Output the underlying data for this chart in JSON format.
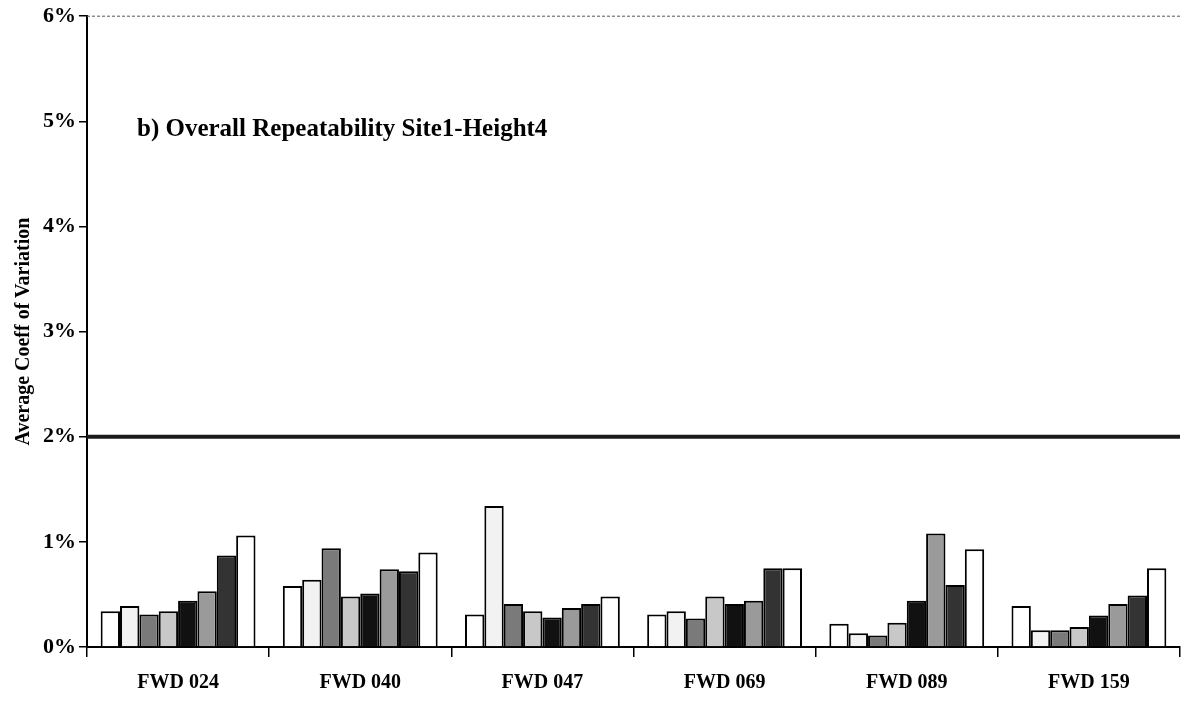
{
  "chart_data": {
    "type": "bar",
    "title": "b) Overall Repeatability Site1-Height4",
    "ylabel": "Average Coeff of Variation",
    "categories": [
      "FWD 024",
      "FWD 040",
      "FWD 047",
      "FWD 069",
      "FWD 089",
      "FWD 159"
    ],
    "series": [
      {
        "color": "#ffffff",
        "values": [
          0.34,
          0.58,
          0.31,
          0.31,
          0.22,
          0.39
        ]
      },
      {
        "color": "#f2f2f2",
        "values": [
          0.39,
          0.64,
          1.34,
          0.34,
          0.13,
          0.16
        ]
      },
      {
        "color": "#7a7a7a",
        "values": [
          0.31,
          0.94,
          0.41,
          0.27,
          0.11,
          0.16
        ]
      },
      {
        "color": "#c8c8c8",
        "values": [
          0.34,
          0.48,
          0.34,
          0.48,
          0.23,
          0.19
        ]
      },
      {
        "color": "#111111",
        "values": [
          0.44,
          0.51,
          0.28,
          0.41,
          0.44,
          0.3
        ]
      },
      {
        "color": "#9a9a9a",
        "values": [
          0.53,
          0.74,
          0.37,
          0.44,
          1.08,
          0.41
        ]
      },
      {
        "color": "#333333",
        "values": [
          0.87,
          0.72,
          0.41,
          0.75,
          0.59,
          0.49
        ]
      },
      {
        "color": "#ffffff",
        "values": [
          1.06,
          0.9,
          0.48,
          0.75,
          0.93,
          0.75
        ]
      }
    ],
    "ylim": [
      0,
      6
    ],
    "yticks": [
      {
        "value": 0,
        "label": "0%"
      },
      {
        "value": 1,
        "label": "1%"
      },
      {
        "value": 2,
        "label": "2%"
      },
      {
        "value": 3,
        "label": "3%"
      },
      {
        "value": 4,
        "label": "4%"
      },
      {
        "value": 5,
        "label": "5%"
      },
      {
        "value": 6,
        "label": "6%"
      }
    ],
    "ref_lines": [
      {
        "axis": "y",
        "value": 2,
        "color": "#1a1a1a"
      }
    ],
    "grid": false,
    "legend": false
  }
}
